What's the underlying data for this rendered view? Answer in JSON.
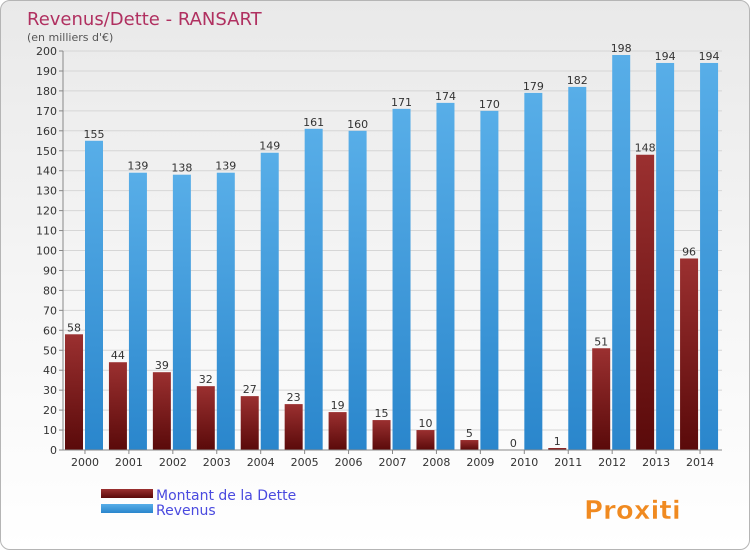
{
  "chart_data": {
    "type": "bar",
    "title": "Revenus/Dette - RANSART",
    "subtitle": "(en milliers d'€)",
    "categories": [
      "2000",
      "2001",
      "2002",
      "2003",
      "2004",
      "2005",
      "2006",
      "2007",
      "2008",
      "2009",
      "2010",
      "2011",
      "2012",
      "2013",
      "2014"
    ],
    "series": [
      {
        "name": "Montant de la Dette",
        "color": "#8b1a1a",
        "values": [
          58,
          44,
          39,
          32,
          27,
          23,
          19,
          15,
          10,
          5,
          0,
          1,
          51,
          148,
          96
        ]
      },
      {
        "name": "Revenus",
        "color": "#3d9be0",
        "values": [
          155,
          139,
          138,
          139,
          149,
          161,
          160,
          171,
          174,
          170,
          179,
          182,
          198,
          194,
          194
        ]
      }
    ],
    "ylim": [
      0,
      200
    ],
    "ytick_step": 10,
    "grid": true,
    "legend": "bottom-left",
    "title_color": "#b03060",
    "legend_text_color": "#4a4adf"
  },
  "logo": {
    "text": "Proxiti"
  }
}
